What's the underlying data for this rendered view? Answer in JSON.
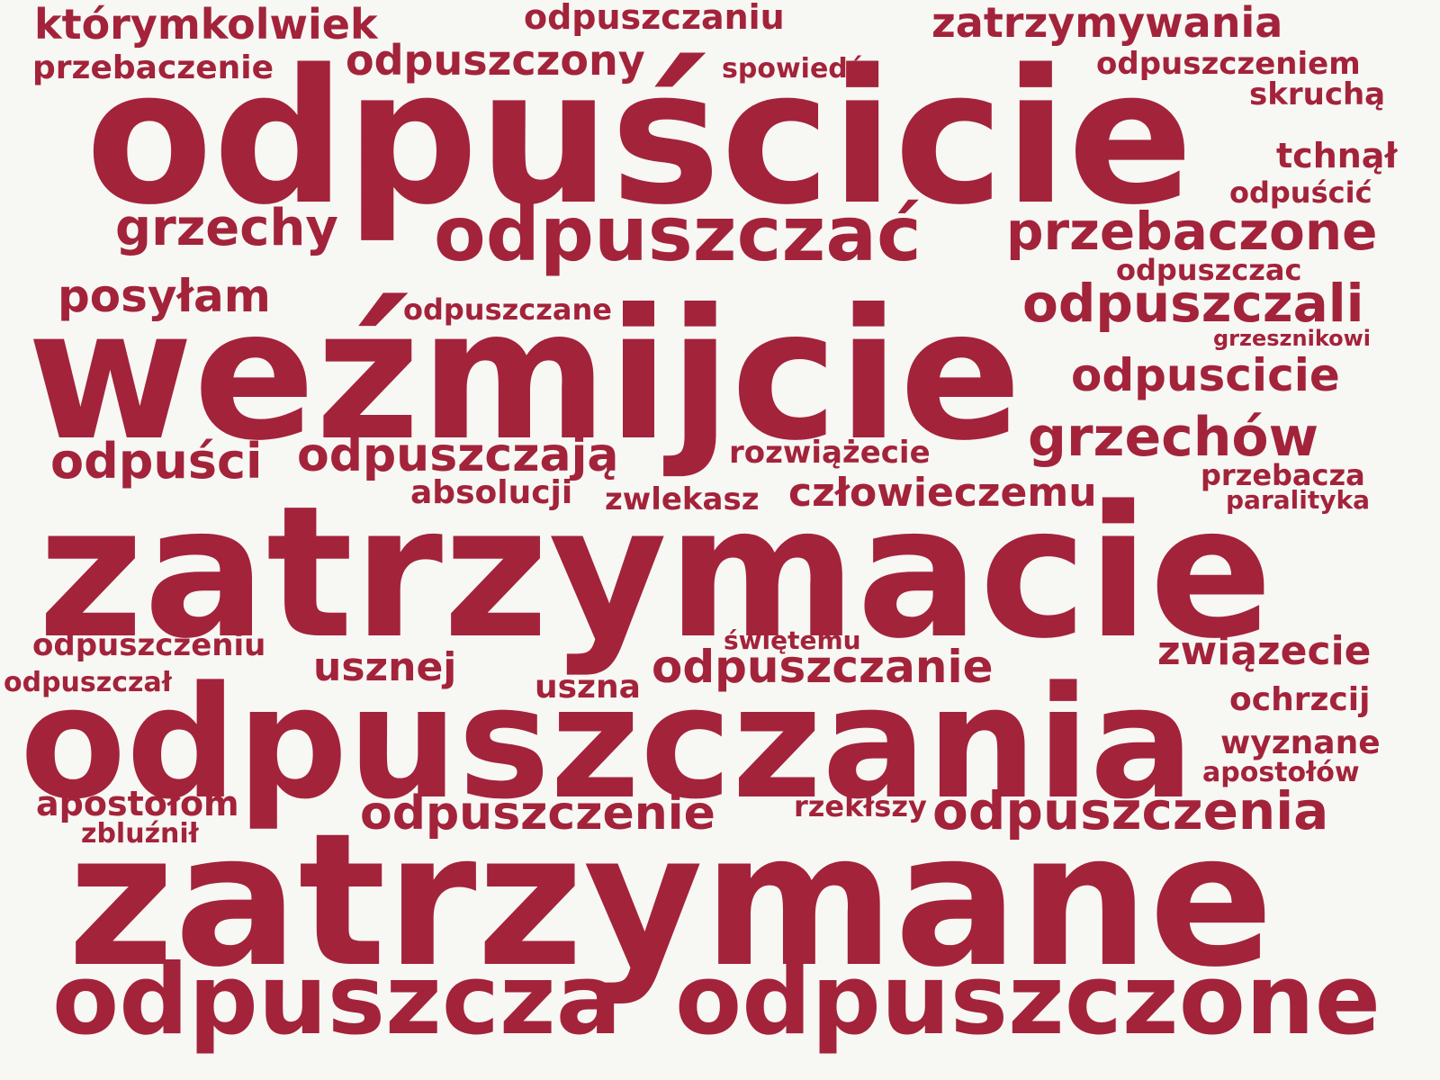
{
  "word_cloud": {
    "color": "#a3233a",
    "background": "#f7f7f4",
    "words": [
      {
        "text": "odpuścicie"
      },
      {
        "text": "weźmijcie"
      },
      {
        "text": "zatrzymacie"
      },
      {
        "text": "odpuszczania"
      },
      {
        "text": "zatrzymane"
      },
      {
        "text": "odpuszczone"
      },
      {
        "text": "odpuszcza"
      },
      {
        "text": "odpuszczać"
      },
      {
        "text": "przebaczone"
      },
      {
        "text": "odpuszczali"
      },
      {
        "text": "odpuscicie"
      },
      {
        "text": "grzechów"
      },
      {
        "text": "odpuszczenia"
      },
      {
        "text": "odpuszczenie"
      },
      {
        "text": "odpuszczanie"
      },
      {
        "text": "zatrzymywania"
      },
      {
        "text": "którymkolwiek"
      },
      {
        "text": "odpuszczony"
      },
      {
        "text": "grzechy"
      },
      {
        "text": "posyłam"
      },
      {
        "text": "odpuści"
      },
      {
        "text": "odpuszczają"
      },
      {
        "text": "człowieczemu"
      },
      {
        "text": "związecie"
      },
      {
        "text": "odpuszczaniu"
      },
      {
        "text": "przebaczenie"
      },
      {
        "text": "odpuszczeniem"
      },
      {
        "text": "skruchą"
      },
      {
        "text": "tchnął"
      },
      {
        "text": "odpuścić"
      },
      {
        "text": "odpuszczac"
      },
      {
        "text": "grzesznikowi"
      },
      {
        "text": "rozwiążecie"
      },
      {
        "text": "absolucji"
      },
      {
        "text": "zwlekasz"
      },
      {
        "text": "przebacza"
      },
      {
        "text": "paralityka"
      },
      {
        "text": "odpuszczeniu"
      },
      {
        "text": "odpuszczał"
      },
      {
        "text": "usznej"
      },
      {
        "text": "świętemu"
      },
      {
        "text": "uszna"
      },
      {
        "text": "ochrzcij"
      },
      {
        "text": "wyznane"
      },
      {
        "text": "apostołów"
      },
      {
        "text": "apostołom"
      },
      {
        "text": "zbluźnił"
      },
      {
        "text": "rzekłszy"
      },
      {
        "text": "spowiedź"
      },
      {
        "text": "odpuszczane"
      }
    ]
  }
}
